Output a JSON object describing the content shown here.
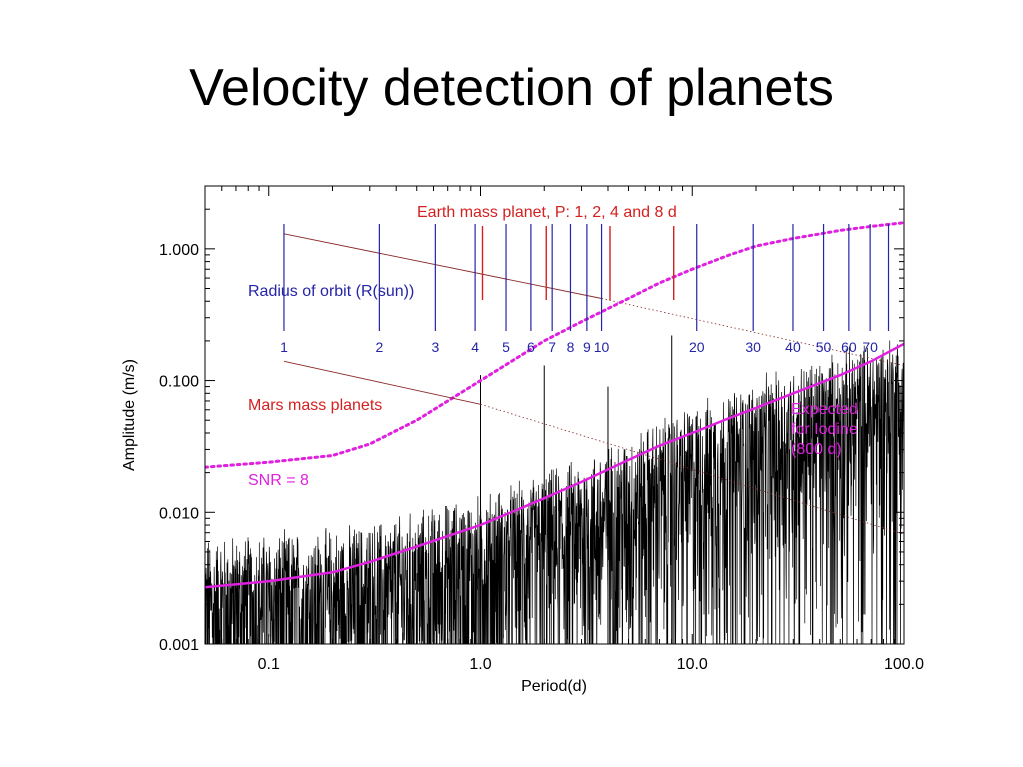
{
  "slide": {
    "title": "Velocity detection of planets"
  },
  "colors": {
    "axis": "#000000",
    "noise": "#000000",
    "earth": "#d42020",
    "radius": "#2424a8",
    "snr": "#e020e0",
    "expected": "#e020e0",
    "mars": "#d42020",
    "guide": "#8a2828"
  },
  "chart_data": {
    "type": "line",
    "xlabel": "Period(d)",
    "ylabel": "Amplitude (m/s)",
    "xscale": "log",
    "yscale": "log",
    "xlim": [
      0.05,
      100
    ],
    "ylim": [
      0.001,
      3.0
    ],
    "xticks": [
      {
        "value": 0.1,
        "label": "0.1"
      },
      {
        "value": 1,
        "label": "1.0"
      },
      {
        "value": 10,
        "label": "10.0"
      },
      {
        "value": 100,
        "label": "100.0"
      }
    ],
    "yticks": [
      {
        "value": 0.001,
        "label": "0.001"
      },
      {
        "value": 0.01,
        "label": "0.010"
      },
      {
        "value": 0.1,
        "label": "0.100"
      },
      {
        "value": 1,
        "label": "1.000"
      }
    ],
    "annotations": {
      "earth": "Earth mass planet, P: 1, 2, 4 and 8 d",
      "radius": "Radius of orbit (R(sun))",
      "mars": "Mars mass planets",
      "snr": "SNR = 8",
      "expected_lines": [
        "Expected",
        "for Iodine",
        "(800 d)"
      ]
    },
    "radius_markers": [
      {
        "label": "1",
        "period": 0.118
      },
      {
        "label": "2",
        "period": 0.333
      },
      {
        "label": "3",
        "period": 0.612
      },
      {
        "label": "4",
        "period": 0.943
      },
      {
        "label": "5",
        "period": 1.32
      },
      {
        "label": "6",
        "period": 1.73
      },
      {
        "label": "7",
        "period": 2.18
      },
      {
        "label": "8",
        "period": 2.66
      },
      {
        "label": "9",
        "period": 3.18
      },
      {
        "label": "10",
        "period": 3.73
      },
      {
        "label": "20",
        "period": 10.5
      },
      {
        "label": "30",
        "period": 19.4
      },
      {
        "label": "40",
        "period": 29.9
      },
      {
        "label": "50",
        "period": 41.7
      },
      {
        "label": "60",
        "period": 54.9
      },
      {
        "label": "70",
        "period": 69.2
      },
      {
        "label": "",
        "period": 84.5
      }
    ],
    "earth_markers": [
      1,
      2,
      4,
      8
    ],
    "series": [
      {
        "name": "SNR = 8",
        "style": "dotted",
        "x": [
          0.05,
          0.1,
          0.2,
          0.3,
          0.5,
          0.7,
          1.0,
          1.5,
          2,
          3,
          5,
          7,
          10,
          15,
          20,
          30,
          50,
          70,
          100
        ],
        "y": [
          0.022,
          0.024,
          0.027,
          0.033,
          0.05,
          0.07,
          0.1,
          0.15,
          0.2,
          0.28,
          0.42,
          0.55,
          0.7,
          0.9,
          1.05,
          1.2,
          1.38,
          1.48,
          1.58
        ]
      },
      {
        "name": "Expected for Iodine (800 d)",
        "style": "solid",
        "x": [
          0.05,
          0.1,
          0.2,
          0.3,
          0.5,
          0.7,
          1.0,
          1.5,
          2,
          3,
          5,
          7,
          10,
          15,
          20,
          30,
          50,
          70,
          100
        ],
        "y": [
          0.0027,
          0.003,
          0.0035,
          0.0042,
          0.0055,
          0.0066,
          0.008,
          0.0105,
          0.0128,
          0.017,
          0.025,
          0.032,
          0.04,
          0.052,
          0.062,
          0.08,
          0.11,
          0.14,
          0.19
        ]
      },
      {
        "name": "Earth mass planet",
        "style": "thin",
        "x": [
          0.118,
          3.73
        ],
        "y": [
          1.3,
          0.42
        ]
      },
      {
        "name": "Mars mass planets",
        "style": "thin",
        "x": [
          0.118,
          1.0
        ],
        "y": [
          0.14,
          0.066
        ]
      }
    ],
    "guide_extensions": [
      {
        "x": [
          3.73,
          100
        ],
        "y": [
          0.42,
          0.13
        ]
      },
      {
        "x": [
          1.0,
          100
        ],
        "y": [
          0.066,
          0.0068
        ]
      }
    ],
    "noise": {
      "envelope_x": [
        0.05,
        0.1,
        0.2,
        0.3,
        0.5,
        0.7,
        1.0,
        1.5,
        2,
        3,
        5,
        7,
        10,
        15,
        20,
        30,
        50,
        70,
        100
      ],
      "envelope_y": [
        0.0055,
        0.0058,
        0.0063,
        0.007,
        0.0085,
        0.01,
        0.0115,
        0.014,
        0.017,
        0.022,
        0.032,
        0.042,
        0.055,
        0.07,
        0.085,
        0.11,
        0.14,
        0.17,
        0.2
      ],
      "peaks": [
        {
          "x": 1.0,
          "y": 0.11
        },
        {
          "x": 2.0,
          "y": 0.13
        },
        {
          "x": 4.0,
          "y": 0.09
        },
        {
          "x": 8.0,
          "y": 0.22
        }
      ]
    }
  }
}
